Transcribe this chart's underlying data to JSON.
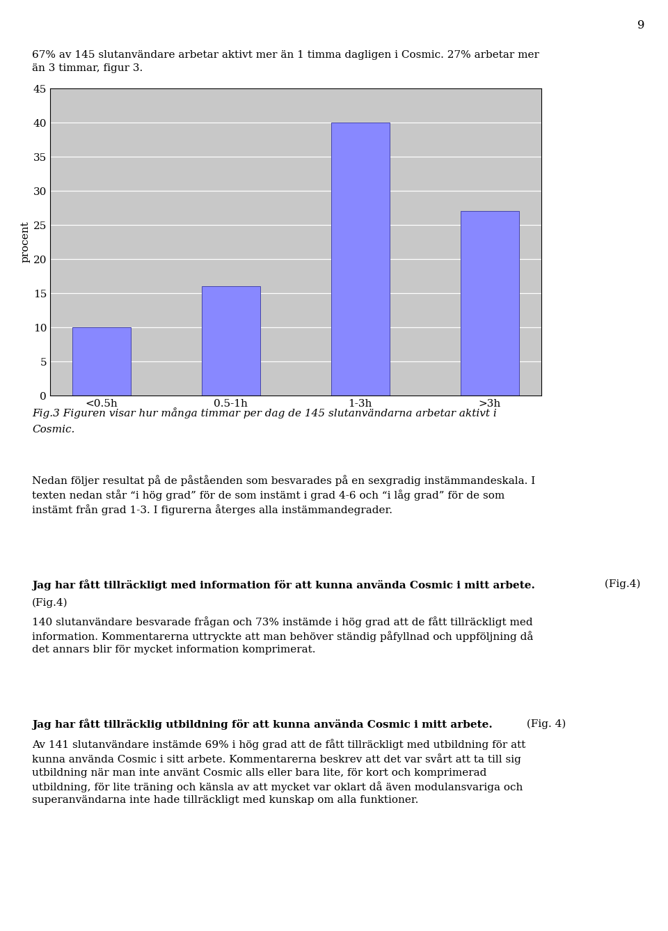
{
  "page_number": "9",
  "intro_text": "67% av 145 slutanvändare arbetar aktivt mer än 1 timma dagligen i Cosmic. 27% arbetar mer\nän 3 timmar, figur 3.",
  "bar_categories": [
    "<0.5h",
    "0.5-1h",
    "1-3h",
    ">3h"
  ],
  "bar_values": [
    10,
    16,
    40,
    27
  ],
  "bar_color": "#8888ff",
  "ylabel": "procent",
  "ylim": [
    0,
    45
  ],
  "yticks": [
    0,
    5,
    10,
    15,
    20,
    25,
    30,
    35,
    40,
    45
  ],
  "plot_bg_color": "#c8c8c8",
  "fig_bg_color": "#ffffff",
  "fig_caption_line1": "Fig.3 Figuren visar hur många timmar per dag de 145 slutanvändarna arbetar aktivt i",
  "fig_caption_line2": "Cosmic.",
  "section1_text": "Nedan följer resultat på de påståenden som besvarades på en sexgradig instämmandeskala. I\ntexten nedan står “i hög grad” för de som instämt i grad 4-6 och “i låg grad” för de som\ninstämt från grad 1-3. I figurerna återges alla instämmandegrader.",
  "section2_heading_bold": "Jag har fått tillräckligt med information för att kunna använda Cosmic i mitt arbete.",
  "section2_heading_normal": " (Fig.4)",
  "section2_body": "140 slutanvändare besvarade frågan och 73% instämde i hög grad att de fått tillräckligt med\ninformation. Kommentarerna uttryckte att man behöver ständig påfyllnad och uppföljning då\ndet annars blir för mycket information komprimerat.",
  "section3_heading_bold": "Jag har fått tillräcklig utbildning för att kunna använda Cosmic i mitt arbete.",
  "section3_heading_normal": " (Fig. 4)",
  "section3_body": "Av 141 slutanvändare instämde 69% i hög grad att de fått tillräckligt med utbildning för att\nkunna använda Cosmic i sitt arbete. Kommentarerna beskrev att det var svårt att ta till sig\nutbildning när man inte använt Cosmic alls eller bara lite, för kort och komprimerad\nutbildning, för lite träning och känsla av att mycket var oklart då även modulansvariga och\nsuperanvändarna inte hade tillräckligt med kunskap om alla funktioner.",
  "font_size": 11,
  "font_size_small": 10.5
}
